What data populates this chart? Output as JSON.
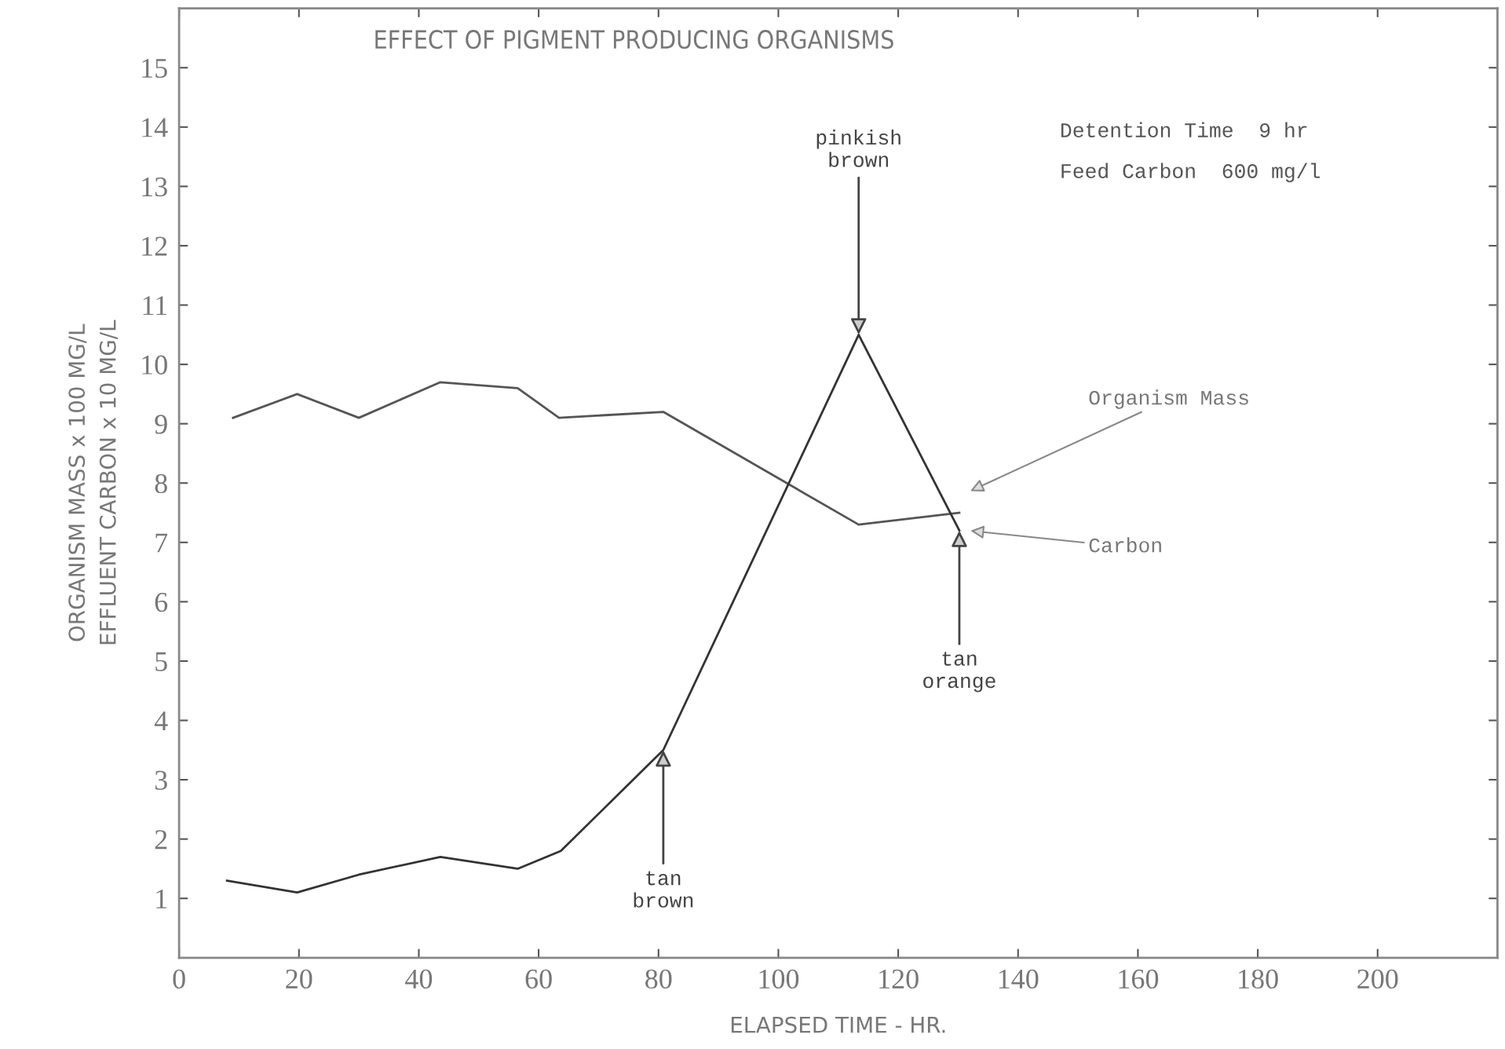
{
  "chart_data": {
    "type": "line",
    "title": "EFFECT OF PIGMENT PRODUCING ORGANISMS",
    "xlabel": "ELAPSED TIME - HR.",
    "ylabel": "ORGANISM MASS x 100 MG/L\nEFFLUENT CARBON x 10 MG/L",
    "series": [
      {
        "name": "Organism Mass",
        "color": "#555555",
        "x": [
          9.0,
          19.7,
          30,
          43.6,
          56.5,
          63.4,
          80.8,
          113.4,
          130.2
        ],
        "values": [
          9.1,
          9.5,
          9.1,
          9.7,
          9.6,
          9.1,
          9.2,
          7.3,
          7.5
        ]
      },
      {
        "name": "Carbon",
        "color": "#333333",
        "x": [
          8.0,
          19.7,
          30,
          43.6,
          56.5,
          63.7,
          80.8,
          113.4,
          130.2
        ],
        "values": [
          1.3,
          1.1,
          1.4,
          1.7,
          1.5,
          1.8,
          3.5,
          10.5,
          7.2
        ]
      }
    ],
    "annotations": [
      {
        "text": "pinkish\nbrown",
        "x": 113.4,
        "y": 10.5
      },
      {
        "text": "tan\nbrown",
        "x": 80.8,
        "y": 3.5
      },
      {
        "text": "tan\norange",
        "x": 130.2,
        "y": 7.2
      },
      "Detention Time  9 hr",
      "Feed Carbon  600 mg/l"
    ],
    "xlim": [
      0,
      220
    ],
    "ylim": [
      0,
      16
    ],
    "xticks": [
      0,
      20,
      40,
      60,
      80,
      100,
      120,
      140,
      160,
      180,
      200
    ],
    "yticks": [
      1,
      2,
      3,
      4,
      5,
      6,
      7,
      8,
      9,
      10,
      11,
      12,
      13,
      14,
      15
    ],
    "grid": false,
    "legend": false,
    "marker": "none",
    "line_style": "solid"
  }
}
